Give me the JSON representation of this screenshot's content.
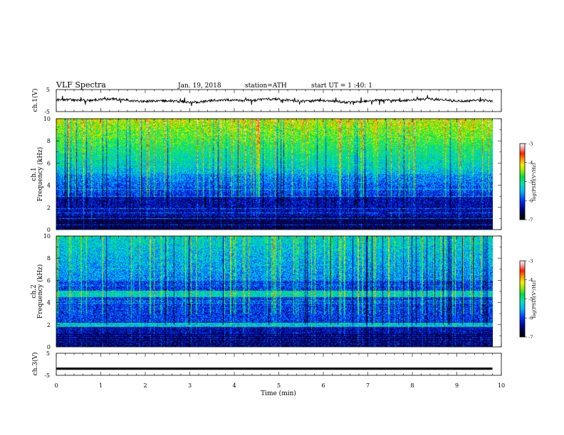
{
  "header": {
    "title": "VLF  Spectra",
    "date": "Jan. 19, 2018",
    "station": "station=ATH",
    "start": "start  UT  =   1 :40: 1"
  },
  "chart_data": [
    {
      "type": "line",
      "name": "ch1-waveform",
      "ylabel": "ch.1(V)",
      "xlim": [
        0,
        10
      ],
      "ylim": [
        -5,
        5
      ],
      "yticks": [
        "5",
        "-5"
      ],
      "offset": 0.0,
      "end_x": 9.8
    },
    {
      "type": "heatmap",
      "name": "ch1-spectrogram",
      "ylabel_channel": "ch.1",
      "ylabel": "Frequency  (kHz)",
      "xlim": [
        0,
        9.8
      ],
      "ylim": [
        0,
        10
      ],
      "yticks": [
        "0",
        "2",
        "4",
        "6",
        "8",
        "10"
      ],
      "colorbar": {
        "label": "log(PSD)(V²/Hz)",
        "range": [
          -7,
          -3
        ],
        "ticks": [
          "-3",
          "-4",
          "-5",
          "-6",
          "-7"
        ]
      }
    },
    {
      "type": "heatmap",
      "name": "ch2-spectrogram",
      "ylabel_channel": "ch.2",
      "ylabel": "Frequency  (kHz)",
      "xlim": [
        0,
        9.8
      ],
      "ylim": [
        0,
        10
      ],
      "yticks": [
        "0",
        "2",
        "4",
        "6",
        "8",
        "10"
      ],
      "colorbar": {
        "label": "log(PSD)(V²/Hz)",
        "range": [
          -7,
          -3
        ],
        "ticks": [
          "-3",
          "-4",
          "-5",
          "-6",
          "-7"
        ]
      }
    },
    {
      "type": "line",
      "name": "ch3-waveform",
      "ylabel": "ch.3(V)",
      "xlim": [
        0,
        10
      ],
      "ylim": [
        -5,
        5
      ],
      "yticks": [
        "5",
        "-5"
      ],
      "offset": -2.0,
      "end_x": 9.8
    }
  ],
  "xaxis": {
    "label": "Time  (min)",
    "ticks": [
      "0",
      "1",
      "2",
      "3",
      "4",
      "5",
      "6",
      "7",
      "8",
      "9",
      "10"
    ]
  }
}
